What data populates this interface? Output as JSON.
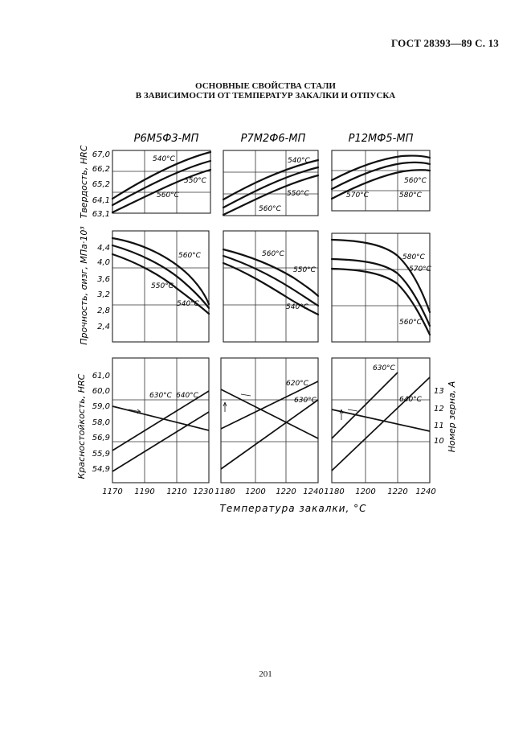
{
  "page": {
    "header": "ГОСТ 28393—89 С. 13",
    "title_line1": "ОСНОВНЫЕ СВОЙСТВА СТАЛИ",
    "title_line2": "В ЗАВИСИМОСТИ ОТ ТЕМПЕРАТУР ЗАКАЛКИ И ОТПУСКА",
    "page_number": "201"
  },
  "figure": {
    "columns": [
      "Р6М5Ф3-МП",
      "Р7М2Ф6-МП",
      "Р12МФ5-МП"
    ],
    "row_labels": [
      "Твердость, HRC",
      "Прочность, σизг, МПа·10³",
      "Красностойкость, HRC"
    ],
    "right_label": "Номер зерна, А",
    "x_axis_label": "Температура закалки, °С",
    "x_ticks": [
      [
        "1170",
        "1190",
        "1210",
        "1230"
      ],
      [
        "1180",
        "1200",
        "1220",
        "1240"
      ],
      [
        "1180",
        "1200",
        "1220",
        "1240"
      ]
    ],
    "y_ticks": {
      "hardness": [
        "67,0",
        "66,2",
        "65,2",
        "64,1",
        "63,1"
      ],
      "strength": [
        "4,4",
        "4,0",
        "3,6",
        "3,2",
        "2,8",
        "2,4"
      ],
      "red_hardness": [
        "61,0",
        "60,0",
        "59,0",
        "58,0",
        "56,9",
        "55,9",
        "54,9"
      ],
      "grain": [
        "13",
        "12",
        "11",
        "10"
      ]
    },
    "curve_labels": {
      "hard_1": [
        "540°С",
        "550°С",
        "560°С"
      ],
      "hard_2": [
        "540°С",
        "550°С",
        "560°С"
      ],
      "hard_3": [
        "560°С",
        "570°С",
        "580°С"
      ],
      "str_1": [
        "560°С",
        "550°С",
        "540°С"
      ],
      "str_2": [
        "560°С",
        "550°С",
        "540°С"
      ],
      "str_3": [
        "580°С",
        "570°С",
        "560°С"
      ],
      "red_1": [
        "630°С",
        "640°С"
      ],
      "red_2": [
        "620°С",
        "630°С"
      ],
      "red_3": [
        "630°С",
        "640°С"
      ]
    }
  }
}
